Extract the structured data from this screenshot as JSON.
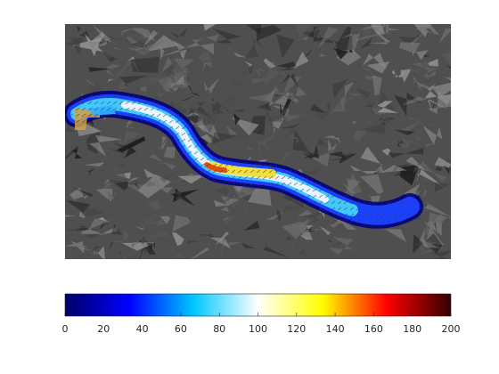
{
  "chart_data": {
    "type": "heatmap",
    "title": "",
    "xlabel": "",
    "ylabel": "",
    "background": "grayscale satellite image of mountainous glacier terrain",
    "overlay": "glacier surface velocity field, colored cells with small direction arrows",
    "colormap": {
      "name": "jet-like (dark blue → cyan → white → yellow → red → dark red)",
      "stops": [
        "#000066",
        "#0000ff",
        "#00c8ff",
        "#ffffff",
        "#ffff00",
        "#ff0000",
        "#330000"
      ],
      "clim": [
        0,
        200
      ],
      "ticks": [
        "0",
        "20",
        "40",
        "60",
        "80",
        "100",
        "120",
        "140",
        "160",
        "180",
        "200"
      ]
    },
    "colorbar_position": "bottom"
  }
}
